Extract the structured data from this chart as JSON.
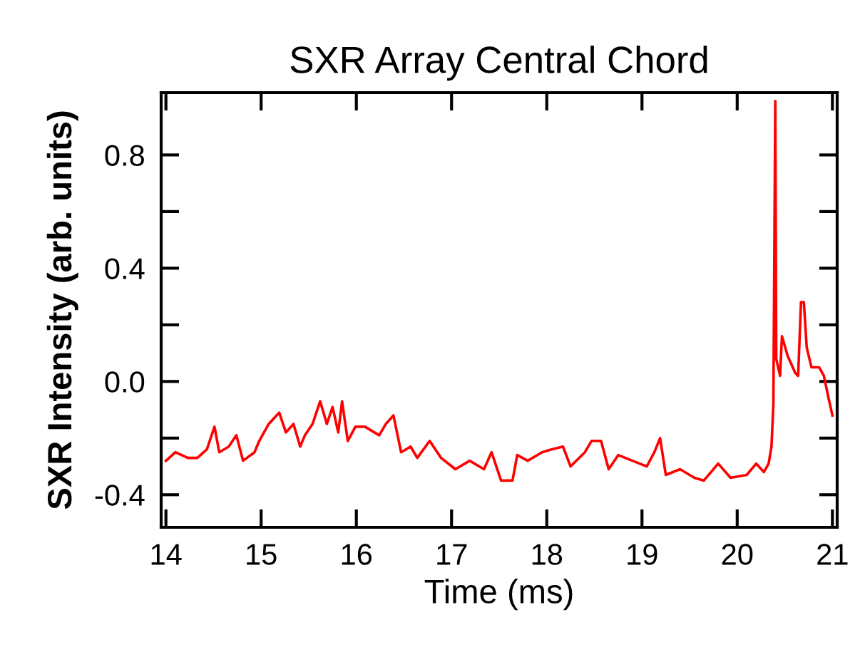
{
  "chart_data": {
    "type": "line",
    "title": "SXR Array Central Chord",
    "xlabel": "Time (ms)",
    "ylabel": "SXR Intensity (arb. units)",
    "xlim": [
      13.95,
      21.05
    ],
    "ylim": [
      -0.515,
      1.02
    ],
    "xticks": [
      14,
      15,
      16,
      17,
      18,
      19,
      20,
      21
    ],
    "yticks": [
      {
        "value": -0.4,
        "label": "-0.4"
      },
      {
        "value": -0.2,
        "label": null
      },
      {
        "value": 0.0,
        "label": "0.0"
      },
      {
        "value": 0.2,
        "label": null
      },
      {
        "value": 0.4,
        "label": "0.4"
      },
      {
        "value": 0.6,
        "label": null
      },
      {
        "value": 0.8,
        "label": "0.8"
      }
    ],
    "grid": false,
    "legend": false,
    "marker": "none",
    "line_style": "solid",
    "series": [
      {
        "color": "#ff0000",
        "x": [
          14.0,
          14.1,
          14.23,
          14.33,
          14.43,
          14.51,
          14.56,
          14.66,
          14.74,
          14.81,
          14.93,
          14.98,
          15.08,
          15.19,
          15.26,
          15.34,
          15.41,
          15.46,
          15.54,
          15.62,
          15.69,
          15.75,
          15.81,
          15.85,
          15.91,
          15.99,
          16.09,
          16.24,
          16.31,
          16.39,
          16.47,
          16.57,
          16.64,
          16.77,
          16.89,
          17.04,
          17.19,
          17.34,
          17.42,
          17.52,
          17.64,
          17.69,
          17.8,
          17.95,
          18.05,
          18.17,
          18.25,
          18.4,
          18.47,
          18.57,
          18.65,
          18.75,
          18.9,
          19.05,
          19.13,
          19.19,
          19.25,
          19.4,
          19.55,
          19.65,
          19.8,
          19.93,
          20.1,
          20.2,
          20.28,
          20.33,
          20.36,
          20.38,
          20.4,
          20.41,
          20.45,
          20.47,
          20.53,
          20.61,
          20.64,
          20.67,
          20.7,
          20.73,
          20.78,
          20.86,
          20.91,
          20.96,
          21.0
        ],
        "values": [
          -0.28,
          -0.25,
          -0.27,
          -0.27,
          -0.24,
          -0.16,
          -0.25,
          -0.23,
          -0.19,
          -0.28,
          -0.25,
          -0.21,
          -0.15,
          -0.11,
          -0.18,
          -0.15,
          -0.23,
          -0.19,
          -0.15,
          -0.07,
          -0.15,
          -0.09,
          -0.18,
          -0.07,
          -0.21,
          -0.16,
          -0.16,
          -0.19,
          -0.15,
          -0.12,
          -0.25,
          -0.23,
          -0.27,
          -0.21,
          -0.27,
          -0.31,
          -0.28,
          -0.31,
          -0.25,
          -0.35,
          -0.35,
          -0.26,
          -0.28,
          -0.25,
          -0.24,
          -0.23,
          -0.3,
          -0.25,
          -0.21,
          -0.21,
          -0.31,
          -0.26,
          -0.28,
          -0.3,
          -0.25,
          -0.2,
          -0.33,
          -0.31,
          -0.34,
          -0.35,
          -0.29,
          -0.34,
          -0.33,
          -0.29,
          -0.32,
          -0.29,
          -0.23,
          -0.08,
          0.99,
          0.08,
          0.02,
          0.16,
          0.09,
          0.03,
          0.02,
          0.28,
          0.28,
          0.12,
          0.05,
          0.05,
          0.02,
          -0.06,
          -0.12
        ]
      }
    ]
  }
}
